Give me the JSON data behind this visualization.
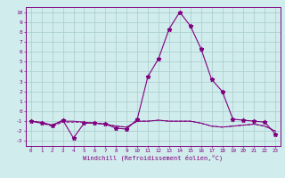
{
  "x_values": [
    0,
    1,
    2,
    3,
    4,
    5,
    6,
    7,
    8,
    9,
    10,
    11,
    12,
    13,
    14,
    15,
    16,
    17,
    18,
    19,
    20,
    21,
    22,
    23
  ],
  "line1_y": [
    -1.0,
    -1.2,
    -1.4,
    -0.9,
    -2.7,
    -1.2,
    -1.2,
    -1.3,
    -1.7,
    -1.8,
    -0.8,
    3.5,
    5.3,
    8.3,
    10.0,
    8.6,
    6.3,
    3.2,
    2.0,
    -0.8,
    -0.9,
    -1.0,
    -1.1,
    -2.3
  ],
  "line2_y": [
    -1.0,
    -1.2,
    -1.5,
    -1.1,
    -1.1,
    -1.1,
    -1.2,
    -1.3,
    -1.5,
    -1.6,
    -1.0,
    -1.0,
    -0.9,
    -1.0,
    -1.0,
    -1.0,
    -1.2,
    -1.5,
    -1.6,
    -1.5,
    -1.4,
    -1.3,
    -1.5,
    -2.0
  ],
  "line3_y": [
    -1.0,
    -1.1,
    -1.4,
    -1.0,
    -1.0,
    -1.1,
    -1.2,
    -1.3,
    -1.5,
    -1.6,
    -1.0,
    -1.0,
    -0.9,
    -1.0,
    -1.0,
    -1.0,
    -1.2,
    -1.5,
    -1.6,
    -1.5,
    -1.4,
    -1.3,
    -1.5,
    -2.0
  ],
  "line_color": "#800080",
  "bg_color": "#d0ecec",
  "grid_color": "#a8cccc",
  "axis_color": "#800080",
  "xlabel": "Windchill (Refroidissement éolien,°C)",
  "ylim": [
    -3.5,
    10.5
  ],
  "xlim": [
    -0.5,
    23.5
  ],
  "yticks": [
    10,
    9,
    8,
    7,
    6,
    5,
    4,
    3,
    2,
    1,
    0,
    -1,
    -2,
    -3
  ],
  "xticks": [
    0,
    1,
    2,
    3,
    4,
    5,
    6,
    7,
    8,
    9,
    10,
    11,
    12,
    13,
    14,
    15,
    16,
    17,
    18,
    19,
    20,
    21,
    22,
    23
  ]
}
